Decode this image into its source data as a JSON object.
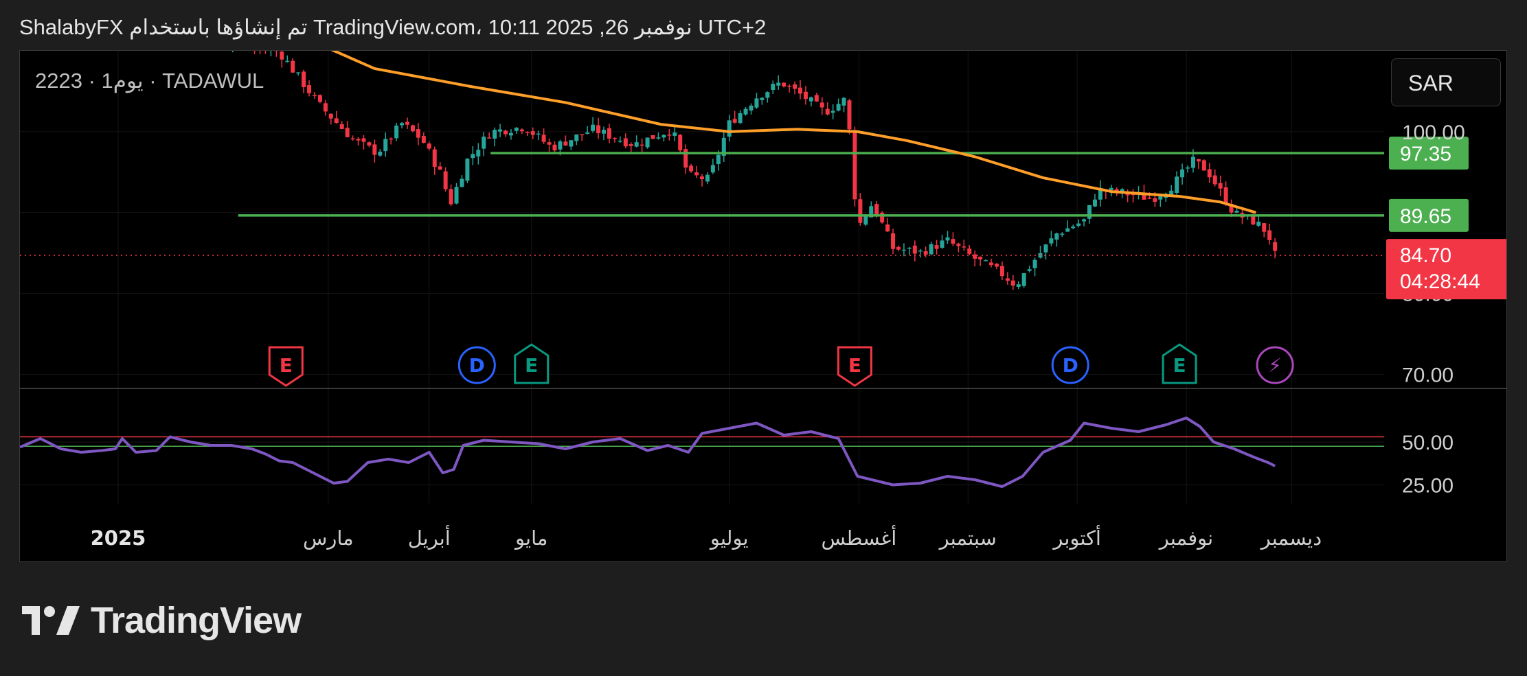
{
  "header": {
    "title": "ShalabyFX تم إنشاؤها باستخدام TradingView.com، 10:11 2025 ,26 نوفمبر UTC+2"
  },
  "symbol": {
    "text": "2223 · 1يوم · TADAWUL"
  },
  "currency": {
    "label": "SAR"
  },
  "footer": {
    "brand": "TradingView"
  },
  "colors": {
    "up": "#26a69a",
    "down": "#f23645",
    "ma": "#ff9f2a",
    "level": "#4caf50",
    "rsi": "#7e57c2",
    "bg": "#000000"
  },
  "chart_data": {
    "type": "candlestick",
    "x_ticks": [
      "2025",
      "مارس",
      "أبريل",
      "مايو",
      "يوليو",
      "أغسطس",
      "سبتمبر",
      "أكتوبر",
      "نوفمبر",
      "ديسمبر"
    ],
    "price_axis": {
      "ticks": [
        "100.00",
        "80.00",
        "70.00"
      ],
      "range": [
        68,
        110
      ]
    },
    "horizontal_levels": [
      {
        "price": 97.35,
        "label": "97.35"
      },
      {
        "price": 89.65,
        "label": "89.65"
      }
    ],
    "last_price": {
      "price": 84.7,
      "label": "84.70",
      "countdown": "04:28:44"
    },
    "moving_average_path": [
      [
        0.21,
        111.5
      ],
      [
        0.26,
        107.8
      ],
      [
        0.33,
        105.6
      ],
      [
        0.4,
        103.6
      ],
      [
        0.47,
        100.9
      ],
      [
        0.52,
        100.0
      ],
      [
        0.57,
        100.3
      ],
      [
        0.614,
        100.0
      ],
      [
        0.65,
        98.9
      ],
      [
        0.7,
        96.9
      ],
      [
        0.75,
        94.3
      ],
      [
        0.8,
        92.6
      ],
      [
        0.85,
        92.0
      ],
      [
        0.88,
        91.3
      ],
      [
        0.906,
        90.0
      ]
    ],
    "price_path": [
      [
        0.0,
        112.6
      ],
      [
        0.06,
        111.4
      ],
      [
        0.13,
        111.9
      ],
      [
        0.19,
        109.9
      ],
      [
        0.22,
        103.2
      ],
      [
        0.245,
        98.9
      ],
      [
        0.262,
        97.4
      ],
      [
        0.28,
        101.0
      ],
      [
        0.295,
        99.0
      ],
      [
        0.31,
        94.3
      ],
      [
        0.315,
        90.9
      ],
      [
        0.328,
        96.5
      ],
      [
        0.345,
        100.0
      ],
      [
        0.37,
        100.6
      ],
      [
        0.39,
        98.0
      ],
      [
        0.42,
        100.3
      ],
      [
        0.45,
        98.4
      ],
      [
        0.478,
        100.3
      ],
      [
        0.49,
        94.6
      ],
      [
        0.505,
        94.1
      ],
      [
        0.52,
        101.0
      ],
      [
        0.54,
        104.3
      ],
      [
        0.558,
        106.1
      ],
      [
        0.575,
        104.3
      ],
      [
        0.59,
        102.4
      ],
      [
        0.606,
        104.1
      ],
      [
        0.614,
        88.1
      ],
      [
        0.625,
        91.2
      ],
      [
        0.64,
        85.6
      ],
      [
        0.66,
        85.1
      ],
      [
        0.68,
        86.5
      ],
      [
        0.7,
        84.3
      ],
      [
        0.72,
        82.4
      ],
      [
        0.73,
        81.0
      ],
      [
        0.745,
        84.4
      ],
      [
        0.76,
        87.4
      ],
      [
        0.78,
        89.0
      ],
      [
        0.79,
        92.8
      ],
      [
        0.81,
        92.4
      ],
      [
        0.83,
        91.7
      ],
      [
        0.845,
        93.4
      ],
      [
        0.86,
        96.3
      ],
      [
        0.87,
        95.3
      ],
      [
        0.88,
        92.6
      ],
      [
        0.89,
        89.9
      ],
      [
        0.906,
        88.8
      ],
      [
        0.915,
        87.4
      ],
      [
        0.92,
        84.7
      ]
    ],
    "event_markers": [
      {
        "x": 0.195,
        "letter": "E",
        "kind": "earnings-negative"
      },
      {
        "x": 0.335,
        "letter": "D",
        "kind": "dividend"
      },
      {
        "x": 0.375,
        "letter": "E",
        "kind": "earnings-positive"
      },
      {
        "x": 0.612,
        "letter": "E",
        "kind": "earnings-negative"
      },
      {
        "x": 0.77,
        "letter": "D",
        "kind": "dividend"
      },
      {
        "x": 0.85,
        "letter": "E",
        "kind": "earnings-positive"
      },
      {
        "x": 0.92,
        "letter": "⚡",
        "kind": "split"
      }
    ],
    "rsi": {
      "ticks": [
        "50.00",
        "25.00"
      ],
      "range": [
        16,
        78
      ],
      "upper_band": 53,
      "lower_band": 47.5,
      "path": [
        [
          0.0,
          47
        ],
        [
          0.015,
          52
        ],
        [
          0.03,
          46
        ],
        [
          0.045,
          44
        ],
        [
          0.06,
          45
        ],
        [
          0.07,
          46
        ],
        [
          0.075,
          52
        ],
        [
          0.085,
          44
        ],
        [
          0.1,
          45
        ],
        [
          0.11,
          53
        ],
        [
          0.125,
          50
        ],
        [
          0.14,
          48
        ],
        [
          0.155,
          48
        ],
        [
          0.17,
          46
        ],
        [
          0.18,
          43
        ],
        [
          0.19,
          39
        ],
        [
          0.2,
          38
        ],
        [
          0.215,
          32
        ],
        [
          0.23,
          26
        ],
        [
          0.24,
          27
        ],
        [
          0.255,
          38
        ],
        [
          0.27,
          40
        ],
        [
          0.285,
          38
        ],
        [
          0.3,
          44
        ],
        [
          0.31,
          32
        ],
        [
          0.318,
          34
        ],
        [
          0.325,
          48
        ],
        [
          0.34,
          51
        ],
        [
          0.36,
          50
        ],
        [
          0.38,
          49
        ],
        [
          0.4,
          46
        ],
        [
          0.42,
          50
        ],
        [
          0.44,
          52
        ],
        [
          0.46,
          45
        ],
        [
          0.475,
          48
        ],
        [
          0.49,
          44
        ],
        [
          0.5,
          55
        ],
        [
          0.52,
          58
        ],
        [
          0.54,
          61
        ],
        [
          0.56,
          54
        ],
        [
          0.58,
          56
        ],
        [
          0.6,
          52
        ],
        [
          0.614,
          30
        ],
        [
          0.64,
          25
        ],
        [
          0.66,
          26
        ],
        [
          0.68,
          30
        ],
        [
          0.7,
          28
        ],
        [
          0.72,
          24
        ],
        [
          0.735,
          30
        ],
        [
          0.75,
          44
        ],
        [
          0.77,
          51
        ],
        [
          0.78,
          61
        ],
        [
          0.8,
          58
        ],
        [
          0.82,
          56
        ],
        [
          0.84,
          60
        ],
        [
          0.855,
          64
        ],
        [
          0.865,
          59
        ],
        [
          0.875,
          50
        ],
        [
          0.89,
          46
        ],
        [
          0.905,
          41
        ],
        [
          0.915,
          38
        ],
        [
          0.92,
          36
        ]
      ]
    }
  }
}
